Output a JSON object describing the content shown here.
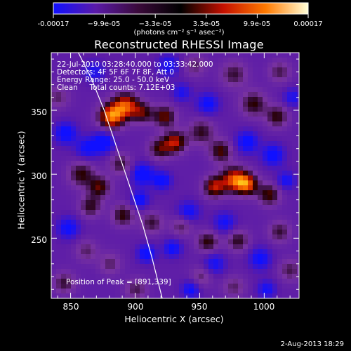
{
  "colorbar": {
    "tick_labels": [
      "-0.00017",
      "−9.9e-05",
      "−3.3e-05",
      "3.3e-05",
      "9.9e-05",
      "0.00017"
    ],
    "unit_label": "(photons cm⁻² s⁻¹ asec⁻²)",
    "colors": [
      "#1010ff",
      "#5a1aa8",
      "#3a0a3a",
      "#000000",
      "#c41000",
      "#ff7a00",
      "#ffffd8"
    ]
  },
  "header": {
    "title": "Reconstructed RHESSI Image"
  },
  "annotations": {
    "line1": "22-Jul-2010 03:28:40.000 to 03:33:42.000",
    "line2": "Detectors: 4F 5F 6F 7F 8F, Att 0",
    "line3": "Energy Range: 25.0 - 50.0 keV",
    "line4": "Clean     Total counts: 7.12E+03",
    "peak": "Position of Peak = [891,339]"
  },
  "footer": {
    "date": "2-Aug-2013 18:29"
  },
  "chart_data": {
    "type": "heatmap",
    "title": "Reconstructed RHESSI Image",
    "xlabel": "Heliocentric X (arcsec)",
    "ylabel": "Heliocentric Y (arcsec)",
    "xlim": [
      835,
      1027
    ],
    "ylim": [
      203,
      395
    ],
    "x_ticks": [
      850,
      900,
      950,
      1000
    ],
    "y_ticks": [
      250,
      300,
      350
    ],
    "colorbar_range": [
      -0.00017,
      0.00017
    ],
    "peak_position": [
      891,
      339
    ],
    "limb_curve": [
      [
        856,
        395
      ],
      [
        866,
        375
      ],
      [
        876,
        350
      ],
      [
        886,
        320
      ],
      [
        896,
        290
      ],
      [
        906,
        260
      ],
      [
        913,
        235
      ],
      [
        921,
        203
      ]
    ],
    "sources": [
      {
        "x": 881,
        "y": 345,
        "v": 1.0,
        "w": 7
      },
      {
        "x": 892,
        "y": 354,
        "v": 0.85,
        "w": 7
      },
      {
        "x": 905,
        "y": 348,
        "v": 0.55,
        "w": 6
      },
      {
        "x": 922,
        "y": 345,
        "v": 0.65,
        "w": 6
      },
      {
        "x": 930,
        "y": 325,
        "v": 0.75,
        "w": 6
      },
      {
        "x": 918,
        "y": 320,
        "v": 0.55,
        "w": 6
      },
      {
        "x": 858,
        "y": 300,
        "v": 0.55,
        "w": 7
      },
      {
        "x": 872,
        "y": 290,
        "v": 0.6,
        "w": 6
      },
      {
        "x": 865,
        "y": 275,
        "v": 0.5,
        "w": 6
      },
      {
        "x": 888,
        "y": 308,
        "v": 0.45,
        "w": 6
      },
      {
        "x": 950,
        "y": 333,
        "v": 0.5,
        "w": 7
      },
      {
        "x": 965,
        "y": 318,
        "v": 0.6,
        "w": 6
      },
      {
        "x": 975,
        "y": 296,
        "v": 0.85,
        "w": 7
      },
      {
        "x": 985,
        "y": 292,
        "v": 0.85,
        "w": 6
      },
      {
        "x": 960,
        "y": 290,
        "v": 0.75,
        "w": 6
      },
      {
        "x": 1002,
        "y": 284,
        "v": 0.6,
        "w": 6
      },
      {
        "x": 990,
        "y": 355,
        "v": 0.55,
        "w": 7
      },
      {
        "x": 1008,
        "y": 345,
        "v": 0.55,
        "w": 6
      },
      {
        "x": 975,
        "y": 378,
        "v": 0.45,
        "w": 7
      },
      {
        "x": 1010,
        "y": 380,
        "v": 0.4,
        "w": 6
      },
      {
        "x": 890,
        "y": 268,
        "v": 0.55,
        "w": 6
      },
      {
        "x": 912,
        "y": 262,
        "v": 0.45,
        "w": 6
      },
      {
        "x": 935,
        "y": 260,
        "v": 0.4,
        "w": 6
      },
      {
        "x": 955,
        "y": 247,
        "v": 0.55,
        "w": 6
      },
      {
        "x": 978,
        "y": 248,
        "v": 0.5,
        "w": 6
      },
      {
        "x": 1010,
        "y": 255,
        "v": 0.45,
        "w": 6
      },
      {
        "x": 862,
        "y": 240,
        "v": 0.35,
        "w": 6
      },
      {
        "x": 880,
        "y": 230,
        "v": 0.35,
        "w": 6
      },
      {
        "x": 845,
        "y": 215,
        "v": 0.45,
        "w": 6
      },
      {
        "x": 900,
        "y": 210,
        "v": 0.4,
        "w": 6
      },
      {
        "x": 950,
        "y": 220,
        "v": 0.35,
        "w": 6
      },
      {
        "x": 975,
        "y": 212,
        "v": 0.35,
        "w": 6
      },
      {
        "x": 1018,
        "y": 225,
        "v": 0.4,
        "w": 6
      },
      {
        "x": 840,
        "y": 360,
        "v": 0.35,
        "w": 6
      },
      {
        "x": 945,
        "y": 385,
        "v": 0.35,
        "w": 6
      },
      {
        "x": 875,
        "y": 325,
        "v": -0.55,
        "w": 6
      },
      {
        "x": 846,
        "y": 332,
        "v": -0.5,
        "w": 6
      },
      {
        "x": 848,
        "y": 258,
        "v": -0.45,
        "w": 6
      },
      {
        "x": 862,
        "y": 320,
        "v": -0.4,
        "w": 6
      },
      {
        "x": 905,
        "y": 300,
        "v": -0.55,
        "w": 6
      },
      {
        "x": 920,
        "y": 295,
        "v": -0.5,
        "w": 5
      },
      {
        "x": 903,
        "y": 280,
        "v": -0.45,
        "w": 5
      },
      {
        "x": 908,
        "y": 238,
        "v": -0.5,
        "w": 5
      },
      {
        "x": 928,
        "y": 242,
        "v": -0.45,
        "w": 5
      },
      {
        "x": 940,
        "y": 270,
        "v": -0.45,
        "w": 6
      },
      {
        "x": 955,
        "y": 355,
        "v": -0.45,
        "w": 6
      },
      {
        "x": 985,
        "y": 325,
        "v": -0.5,
        "w": 6
      },
      {
        "x": 1005,
        "y": 315,
        "v": -0.5,
        "w": 6
      },
      {
        "x": 1015,
        "y": 295,
        "v": -0.4,
        "w": 5
      },
      {
        "x": 968,
        "y": 262,
        "v": -0.4,
        "w": 6
      },
      {
        "x": 960,
        "y": 230,
        "v": -0.4,
        "w": 6
      },
      {
        "x": 995,
        "y": 234,
        "v": -0.45,
        "w": 6
      },
      {
        "x": 942,
        "y": 210,
        "v": -0.45,
        "w": 5
      },
      {
        "x": 1000,
        "y": 210,
        "v": -0.4,
        "w": 5
      },
      {
        "x": 925,
        "y": 385,
        "v": -0.4,
        "w": 6
      },
      {
        "x": 935,
        "y": 364,
        "v": -0.35,
        "w": 5
      },
      {
        "x": 868,
        "y": 380,
        "v": -0.35,
        "w": 6
      },
      {
        "x": 1020,
        "y": 360,
        "v": -0.35,
        "w": 5
      }
    ]
  }
}
